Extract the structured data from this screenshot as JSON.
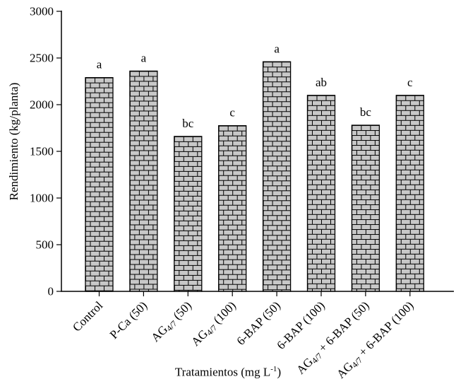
{
  "chart_data": {
    "type": "bar",
    "title": "",
    "ylabel": "Rendimiento (kg/planta)",
    "xlabel": "Tratamientos (mg L⁻¹)",
    "xlabel_parts": {
      "main": "Tratamientos (mg L",
      "sup": "-1",
      "close": ")"
    },
    "ylim": [
      0,
      3000
    ],
    "yticks": [
      0,
      500,
      1000,
      1500,
      2000,
      2500,
      3000
    ],
    "grid": false,
    "legend": null,
    "categories": [
      "Control",
      "P-Ca (50)",
      "AG4/7 (50)",
      "AG4/7 (100)",
      "6-BAP (50)",
      "6-BAP (100)",
      "AG4/7 + 6-BAP (50)",
      "AG4/7 + 6-BAP (100)"
    ],
    "subscript_token": "4/7",
    "values": [
      2290,
      2360,
      1660,
      1775,
      2460,
      2100,
      1780,
      2100
    ],
    "sig_letters": [
      "a",
      "a",
      "bc",
      "c",
      "a",
      "ab",
      "bc",
      "c"
    ],
    "style": {
      "bar_fill": "#c8c8c8",
      "bar_edge": "#000000",
      "bar_pattern": "brick",
      "axis_color": "#000000",
      "text_color": "#000000",
      "background": "#ffffff"
    }
  }
}
